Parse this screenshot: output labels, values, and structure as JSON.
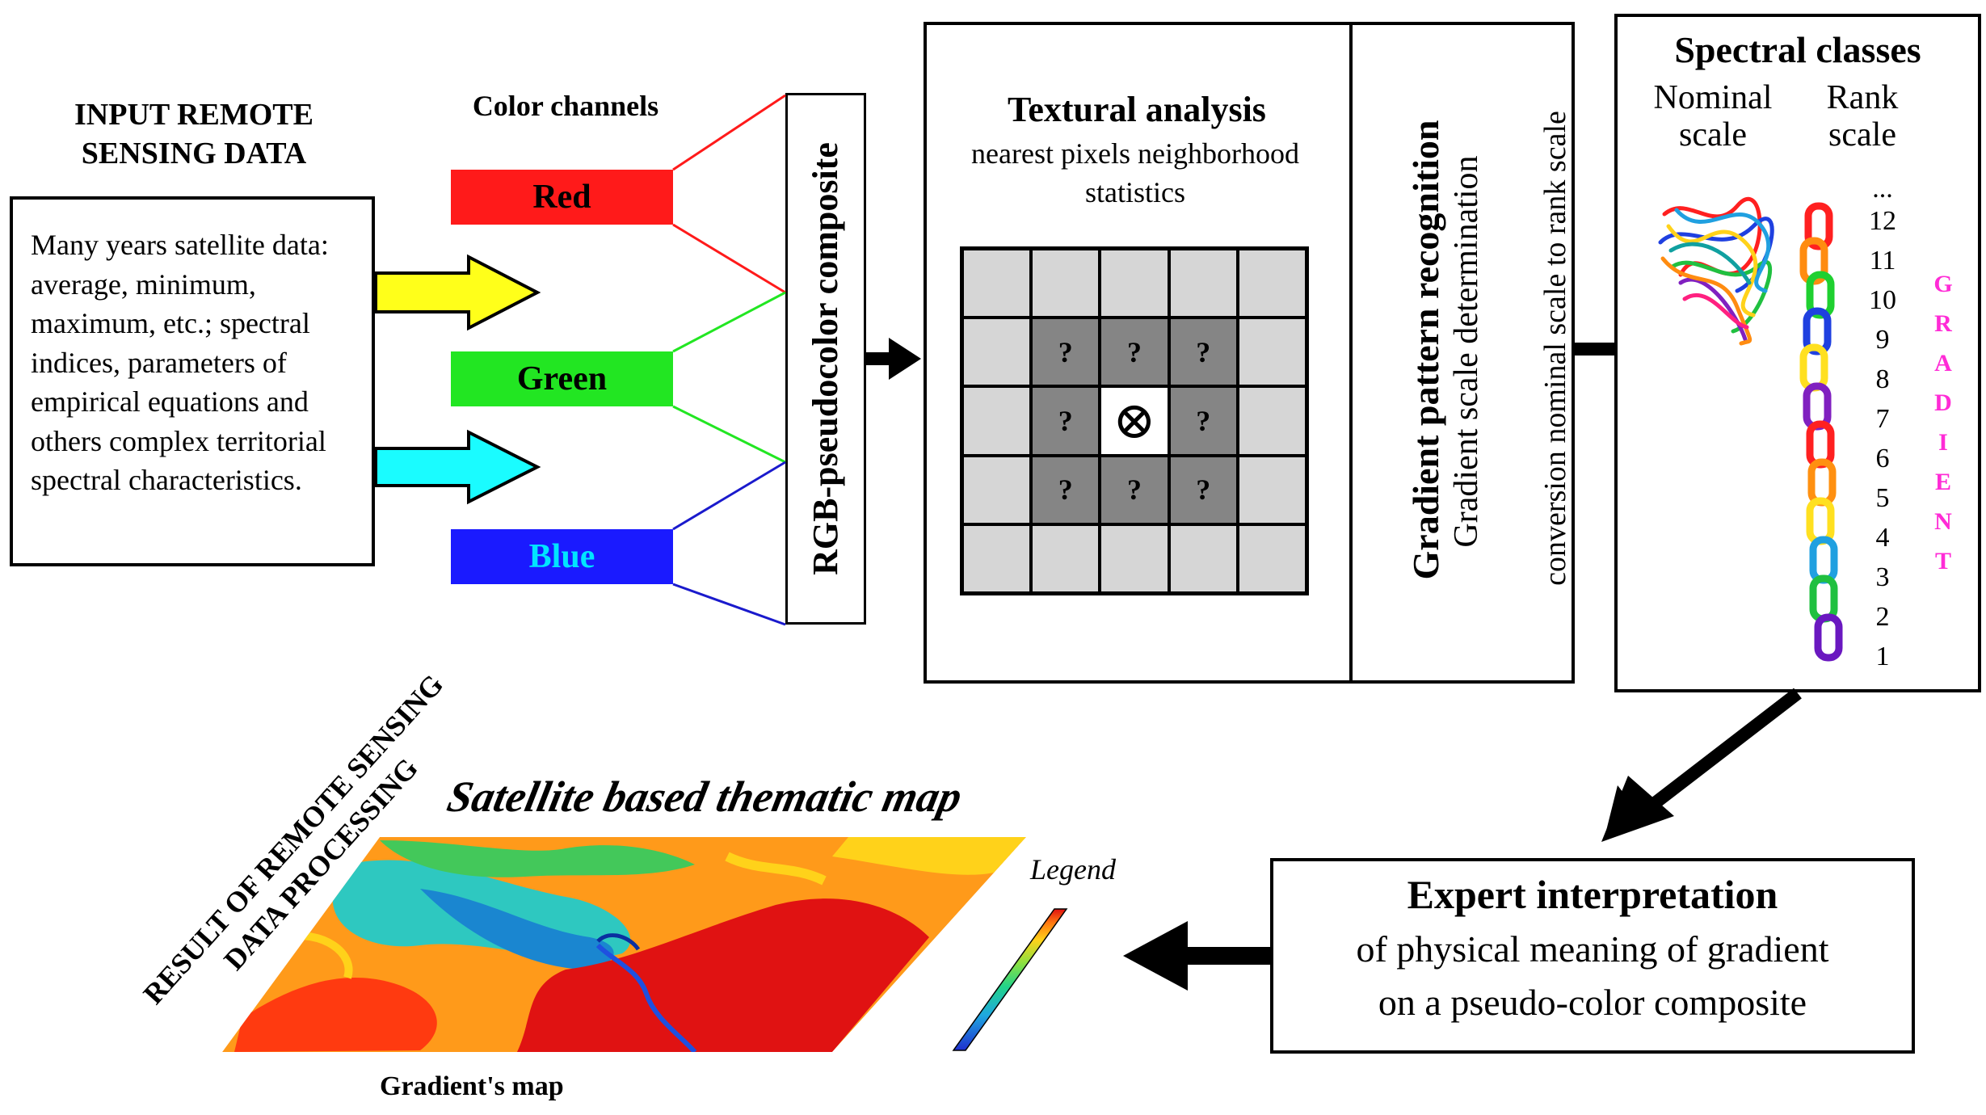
{
  "input": {
    "title": "INPUT REMOTE SENSING DATA",
    "description": "Many years satellite data: average, minimum, maximum, etc.; spectral indices, parameters of empirical equations and others complex territorial spectral characteristics."
  },
  "channels": {
    "title": "Color channels",
    "items": [
      {
        "label": "Red",
        "fill": "#ff1a1a",
        "text": "#000000"
      },
      {
        "label": "Green",
        "fill": "#22e622",
        "text": "#000000"
      },
      {
        "label": "Blue",
        "fill": "#1a1aff",
        "text": "#00e5ff"
      }
    ]
  },
  "composite": {
    "label": "RGB-pseudocolor composite"
  },
  "textural": {
    "title": "Textural analysis",
    "subtitle": "nearest pixels neighborhood statistics",
    "unknown_mark": "?",
    "center_mark": "⊗"
  },
  "gradient_panel": {
    "line1": "Gradient pattern recognition",
    "line2": "Gradient scale determination",
    "line3": "conversion nominal scale to rank scale"
  },
  "spectral": {
    "title": "Spectral classes",
    "nominal_label": "Nominal scale",
    "rank_label": "Rank scale",
    "rank_values": [
      "...",
      "12",
      "11",
      "10",
      "9",
      "8",
      "7",
      "6",
      "5",
      "4",
      "3",
      "2",
      "1"
    ],
    "vertical_word": "GRADIENT",
    "vertical_word_color": "#ff2bd6"
  },
  "expert": {
    "title": "Expert interpretation",
    "line1": "of physical meaning of gradient",
    "line2": "on a pseudo-color composite"
  },
  "result": {
    "diag_title": "RESULT OF REMOTE SENSING DATA PROCESSING",
    "map_title": "Satellite based thematic map",
    "legend_label": "Legend",
    "map_caption": "Gradient's map"
  }
}
